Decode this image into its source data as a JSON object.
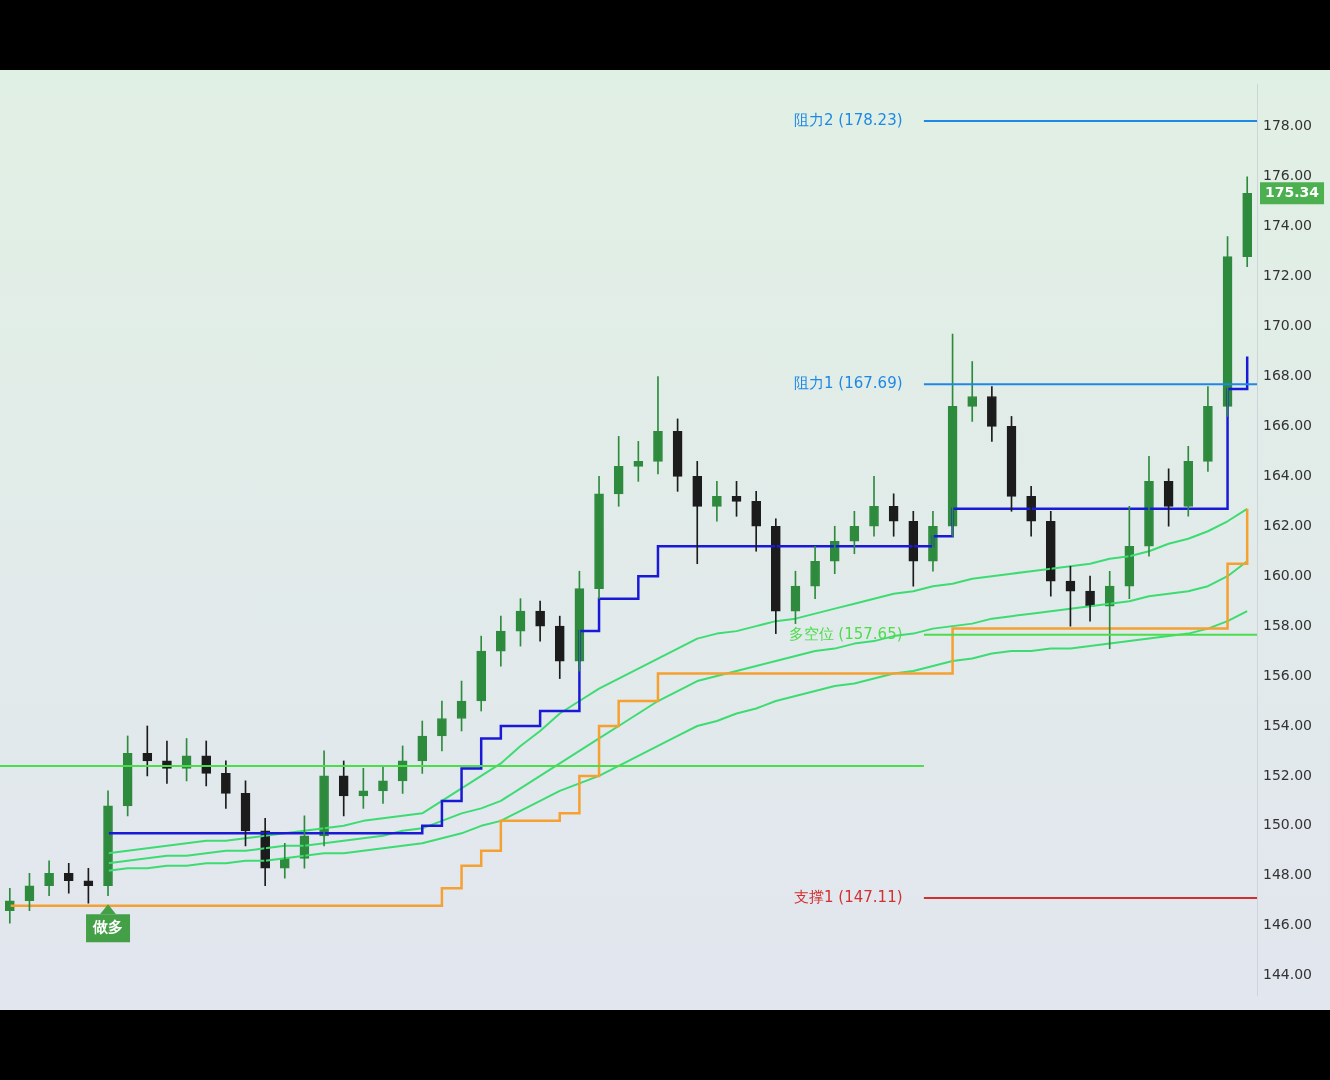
{
  "chart_data": {
    "type": "candlestick",
    "categories": [
      null,
      null,
      null,
      null,
      null,
      null,
      null,
      null,
      null,
      null,
      null,
      null,
      null,
      null,
      null,
      null,
      null,
      null,
      null,
      null,
      null,
      null,
      null,
      null,
      null,
      null,
      null,
      null,
      null,
      null,
      null,
      null,
      null,
      null,
      null,
      null,
      null,
      null,
      null,
      null,
      null,
      null,
      null,
      null,
      null,
      null,
      null,
      null,
      null,
      null,
      null,
      null,
      null,
      null,
      null,
      null,
      null,
      null,
      null,
      null,
      null,
      null,
      null,
      null
    ],
    "ohlc": [
      [
        146.6,
        147.5,
        146.1,
        147.0
      ],
      [
        147.0,
        148.1,
        146.6,
        147.6
      ],
      [
        147.6,
        148.6,
        147.2,
        148.1
      ],
      [
        148.1,
        148.5,
        147.3,
        147.8
      ],
      [
        147.8,
        148.3,
        146.9,
        147.6
      ],
      [
        147.6,
        151.4,
        147.2,
        150.8
      ],
      [
        150.8,
        153.6,
        150.4,
        152.9
      ],
      [
        152.9,
        154.0,
        152.0,
        152.6
      ],
      [
        152.6,
        153.4,
        151.7,
        152.3
      ],
      [
        152.3,
        153.5,
        151.8,
        152.8
      ],
      [
        152.8,
        153.4,
        151.6,
        152.1
      ],
      [
        152.1,
        152.6,
        150.7,
        151.3
      ],
      [
        151.3,
        151.8,
        149.2,
        149.8
      ],
      [
        149.8,
        150.3,
        147.6,
        148.3
      ],
      [
        148.3,
        149.3,
        147.9,
        148.7
      ],
      [
        148.7,
        150.4,
        148.3,
        149.6
      ],
      [
        149.6,
        153.0,
        149.2,
        152.0
      ],
      [
        152.0,
        152.6,
        150.4,
        151.2
      ],
      [
        151.2,
        152.3,
        150.7,
        151.4
      ],
      [
        151.4,
        152.4,
        150.9,
        151.8
      ],
      [
        151.8,
        153.2,
        151.3,
        152.6
      ],
      [
        152.6,
        154.2,
        152.1,
        153.6
      ],
      [
        153.6,
        155.0,
        153.0,
        154.3
      ],
      [
        154.3,
        155.8,
        153.8,
        155.0
      ],
      [
        155.0,
        157.6,
        154.6,
        157.0
      ],
      [
        157.0,
        158.4,
        156.4,
        157.8
      ],
      [
        157.8,
        159.1,
        157.2,
        158.6
      ],
      [
        158.6,
        159.0,
        157.4,
        158.0
      ],
      [
        158.0,
        158.4,
        155.9,
        156.6
      ],
      [
        156.6,
        160.2,
        156.2,
        159.5
      ],
      [
        159.5,
        164.0,
        159.1,
        163.3
      ],
      [
        163.3,
        165.6,
        162.8,
        164.4
      ],
      [
        164.4,
        165.4,
        163.8,
        164.6
      ],
      [
        164.6,
        168.0,
        164.1,
        165.8
      ],
      [
        165.8,
        166.3,
        163.4,
        164.0
      ],
      [
        164.0,
        164.6,
        160.5,
        162.8
      ],
      [
        162.8,
        163.8,
        162.2,
        163.2
      ],
      [
        163.2,
        163.8,
        162.4,
        163.0
      ],
      [
        163.0,
        163.4,
        161.0,
        162.0
      ],
      [
        162.0,
        162.3,
        157.7,
        158.6
      ],
      [
        158.6,
        160.2,
        158.1,
        159.6
      ],
      [
        159.6,
        161.2,
        159.1,
        160.6
      ],
      [
        160.6,
        162.0,
        160.1,
        161.4
      ],
      [
        161.4,
        162.6,
        160.9,
        162.0
      ],
      [
        162.0,
        164.0,
        161.6,
        162.8
      ],
      [
        162.8,
        163.3,
        161.6,
        162.2
      ],
      [
        162.2,
        162.6,
        159.6,
        160.6
      ],
      [
        160.6,
        162.6,
        160.2,
        162.0
      ],
      [
        162.0,
        169.7,
        161.6,
        166.8
      ],
      [
        166.8,
        168.6,
        166.2,
        167.2
      ],
      [
        167.2,
        167.6,
        165.4,
        166.0
      ],
      [
        166.0,
        166.4,
        162.6,
        163.2
      ],
      [
        163.2,
        163.6,
        161.6,
        162.2
      ],
      [
        162.2,
        162.6,
        159.2,
        159.8
      ],
      [
        159.8,
        160.4,
        158.0,
        159.4
      ],
      [
        159.4,
        160.0,
        158.2,
        158.8
      ],
      [
        158.8,
        160.2,
        157.1,
        159.6
      ],
      [
        159.6,
        162.8,
        159.1,
        161.2
      ],
      [
        161.2,
        164.8,
        160.8,
        163.8
      ],
      [
        163.8,
        164.3,
        162.0,
        162.8
      ],
      [
        162.8,
        165.2,
        162.4,
        164.6
      ],
      [
        164.6,
        167.6,
        164.2,
        166.8
      ],
      [
        166.8,
        173.6,
        166.4,
        172.8
      ],
      [
        172.8,
        176.0,
        172.4,
        175.34
      ]
    ],
    "series": [
      {
        "type": "step",
        "color": "#1a1ad6",
        "values": [
          null,
          null,
          null,
          null,
          null,
          149.7,
          149.7,
          149.7,
          149.7,
          149.7,
          149.7,
          149.7,
          149.7,
          149.7,
          149.7,
          149.7,
          149.7,
          149.7,
          149.7,
          149.7,
          149.7,
          150.0,
          151.0,
          152.3,
          153.5,
          154.0,
          154.0,
          154.6,
          154.6,
          157.8,
          159.1,
          159.1,
          160.0,
          161.2,
          161.2,
          161.2,
          161.2,
          161.2,
          161.2,
          161.2,
          161.2,
          161.2,
          161.2,
          161.2,
          161.2,
          161.2,
          161.2,
          161.6,
          162.7,
          162.7,
          162.7,
          162.7,
          162.7,
          162.7,
          162.7,
          162.7,
          162.7,
          162.7,
          162.7,
          162.7,
          162.7,
          162.7,
          167.5,
          168.8
        ]
      },
      {
        "type": "step",
        "color": "#f5a030",
        "values": [
          146.8,
          146.8,
          146.8,
          146.8,
          146.8,
          146.8,
          146.8,
          146.8,
          146.8,
          146.8,
          146.8,
          146.8,
          146.8,
          146.8,
          146.8,
          146.8,
          146.8,
          146.8,
          146.8,
          146.8,
          146.8,
          146.8,
          147.5,
          148.4,
          149.0,
          150.2,
          150.2,
          150.2,
          150.5,
          152.0,
          154.0,
          155.0,
          155.0,
          156.1,
          156.1,
          156.1,
          156.1,
          156.1,
          156.1,
          156.1,
          156.1,
          156.1,
          156.1,
          156.1,
          156.1,
          156.1,
          156.1,
          156.1,
          157.9,
          157.9,
          157.9,
          157.9,
          157.9,
          157.9,
          157.9,
          157.9,
          157.9,
          157.9,
          157.9,
          157.9,
          157.9,
          157.9,
          160.5,
          162.7
        ]
      },
      {
        "type": "line",
        "color": "#3ddc72",
        "values": [
          null,
          null,
          null,
          null,
          null,
          148.9,
          149.0,
          149.1,
          149.2,
          149.3,
          149.4,
          149.4,
          149.5,
          149.6,
          149.7,
          149.8,
          149.9,
          150.0,
          150.2,
          150.3,
          150.4,
          150.5,
          151.0,
          151.5,
          152.0,
          152.5,
          153.2,
          153.8,
          154.5,
          155.0,
          155.5,
          155.9,
          156.3,
          156.7,
          157.1,
          157.5,
          157.7,
          157.8,
          158.0,
          158.2,
          158.3,
          158.5,
          158.7,
          158.9,
          159.1,
          159.3,
          159.4,
          159.6,
          159.7,
          159.9,
          160.0,
          160.1,
          160.2,
          160.3,
          160.4,
          160.5,
          160.7,
          160.8,
          161.0,
          161.3,
          161.5,
          161.8,
          162.2,
          162.7
        ]
      },
      {
        "type": "line",
        "color": "#3ddc72",
        "values": [
          null,
          null,
          null,
          null,
          null,
          148.5,
          148.6,
          148.7,
          148.8,
          148.8,
          148.9,
          149.0,
          149.0,
          149.1,
          149.2,
          149.2,
          149.3,
          149.4,
          149.5,
          149.6,
          149.8,
          149.9,
          150.2,
          150.5,
          150.7,
          151.0,
          151.5,
          152.0,
          152.5,
          153.0,
          153.5,
          154.0,
          154.5,
          155.0,
          155.4,
          155.8,
          156.0,
          156.2,
          156.4,
          156.6,
          156.8,
          157.0,
          157.1,
          157.3,
          157.4,
          157.6,
          157.7,
          157.9,
          158.0,
          158.1,
          158.3,
          158.4,
          158.5,
          158.6,
          158.7,
          158.8,
          158.9,
          159.0,
          159.2,
          159.3,
          159.4,
          159.6,
          160.0,
          160.6
        ]
      },
      {
        "type": "line",
        "color": "#3ddc72",
        "values": [
          null,
          null,
          null,
          null,
          null,
          148.2,
          148.3,
          148.3,
          148.4,
          148.4,
          148.5,
          148.5,
          148.6,
          148.6,
          148.7,
          148.8,
          148.9,
          148.9,
          149.0,
          149.1,
          149.2,
          149.3,
          149.5,
          149.7,
          150.0,
          150.2,
          150.6,
          151.0,
          151.4,
          151.7,
          152.0,
          152.4,
          152.8,
          153.2,
          153.6,
          154.0,
          154.2,
          154.5,
          154.7,
          155.0,
          155.2,
          155.4,
          155.6,
          155.7,
          155.9,
          156.1,
          156.2,
          156.4,
          156.6,
          156.7,
          156.9,
          157.0,
          157.0,
          157.1,
          157.1,
          157.2,
          157.3,
          157.4,
          157.5,
          157.6,
          157.7,
          157.9,
          158.2,
          158.6
        ]
      }
    ],
    "ref_lines": [
      {
        "axis": "y",
        "value": 178.23,
        "label": "阻力2 (178.23)",
        "color": "#1e88e5"
      },
      {
        "axis": "y",
        "value": 167.69,
        "label": "阻力1 (167.69)",
        "color": "#1e88e5"
      },
      {
        "axis": "y",
        "value": 157.65,
        "label": "多空位 (157.65)",
        "color": "#4cdc4c"
      },
      {
        "axis": "y",
        "value": 152.4,
        "color": "#4cdc4c"
      },
      {
        "axis": "y",
        "value": 147.11,
        "label": "支撑1 (147.11)",
        "color": "#d32f2f"
      }
    ],
    "annotations": [
      {
        "text": "做多",
        "y": 145.9
      },
      "175.34"
    ],
    "ylim": [
      143.2,
      179.7
    ],
    "yticks": [
      {
        "value": 144,
        "label": "144.00"
      },
      {
        "value": 146,
        "label": "146.00"
      },
      {
        "value": 148,
        "label": "148.00"
      },
      {
        "value": 150,
        "label": "150.00"
      },
      {
        "value": 152,
        "label": "152.00"
      },
      {
        "value": 154,
        "label": "154.00"
      },
      {
        "value": 156,
        "label": "156.00"
      },
      {
        "value": 158,
        "label": "158.00"
      },
      {
        "value": 160,
        "label": "160.00"
      },
      {
        "value": 162,
        "label": "162.00"
      },
      {
        "value": 164,
        "label": "164.00"
      },
      {
        "value": 166,
        "label": "166.00"
      },
      {
        "value": 168,
        "label": "168.00"
      },
      {
        "value": 170,
        "label": "170.00"
      },
      {
        "value": 172,
        "label": "172.00"
      },
      {
        "value": 174,
        "label": "174.00"
      },
      {
        "value": 176,
        "label": "176.00"
      },
      {
        "value": 178,
        "label": "178.00"
      }
    ],
    "tick_labels": "y",
    "grid": false,
    "legend": false
  }
}
